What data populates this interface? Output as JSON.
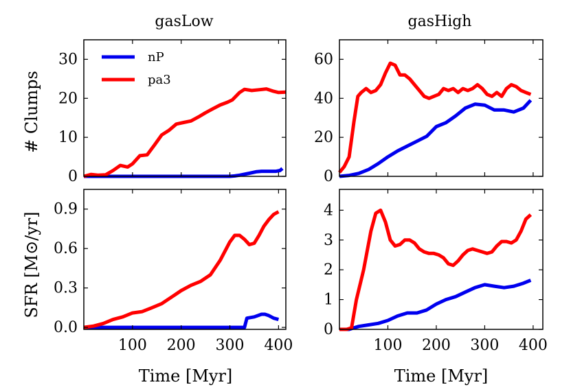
{
  "figure": {
    "xlabel": "Time [Myr]",
    "row_labels": [
      "# Clumps",
      "SFR  [M⊙/yr]"
    ],
    "column_titles": [
      "gasLow",
      "gasHigh"
    ]
  },
  "chart_data": [
    {
      "type": "line",
      "title": "gasLow",
      "ylabel": "# Clumps",
      "xlim": [
        0,
        415
      ],
      "ylim": [
        0,
        35
      ],
      "xticks": [
        100,
        200,
        300,
        400
      ],
      "yticks": [
        0,
        10,
        20,
        30
      ],
      "xtick_labels": [
        "100",
        "200",
        "300",
        "400"
      ],
      "ytick_labels": [
        "0",
        "10",
        "20",
        "30"
      ],
      "show_xtick_labels": false,
      "legend": true,
      "series": [
        {
          "name": "nP",
          "color": "#0000ee",
          "x": [
            0,
            50,
            100,
            150,
            200,
            250,
            300,
            310,
            320,
            340,
            355,
            365,
            380,
            395,
            403,
            408
          ],
          "y": [
            0,
            0,
            0,
            0,
            0,
            0,
            0,
            0.1,
            0.3,
            0.8,
            1.2,
            1.3,
            1.3,
            1.3,
            1.5,
            2.0
          ]
        },
        {
          "name": "pa3",
          "color": "#ff0000",
          "x": [
            0,
            15,
            30,
            45,
            60,
            75,
            90,
            100,
            115,
            130,
            145,
            160,
            175,
            190,
            205,
            220,
            235,
            250,
            265,
            280,
            295,
            305,
            320,
            330,
            345,
            360,
            375,
            390,
            400,
            415
          ],
          "y": [
            0,
            0.5,
            0.3,
            0.4,
            1.5,
            2.8,
            2.4,
            3.2,
            5.3,
            5.5,
            8.0,
            10.6,
            11.8,
            13.4,
            13.8,
            14.2,
            15.2,
            16.3,
            17.3,
            18.3,
            19.0,
            19.6,
            21.5,
            22.3,
            22.0,
            22.2,
            22.4,
            21.8,
            21.5,
            21.6
          ]
        }
      ]
    },
    {
      "type": "line",
      "title": "gasHigh",
      "ylabel": "",
      "xlim": [
        0,
        420
      ],
      "ylim": [
        0,
        70
      ],
      "xticks": [
        100,
        200,
        300,
        400
      ],
      "yticks": [
        0,
        20,
        40,
        60
      ],
      "xtick_labels": [
        "100",
        "200",
        "300",
        "400"
      ],
      "ytick_labels": [
        "0",
        "20",
        "40",
        "60"
      ],
      "show_xtick_labels": false,
      "legend": false,
      "series": [
        {
          "name": "nP",
          "color": "#0000ee",
          "x": [
            0,
            20,
            40,
            60,
            80,
            100,
            120,
            140,
            160,
            180,
            200,
            220,
            240,
            260,
            280,
            300,
            320,
            340,
            360,
            380,
            395
          ],
          "y": [
            0,
            0.5,
            1.5,
            3.5,
            6.5,
            10,
            13,
            15.5,
            18,
            20.5,
            25.5,
            27.5,
            31,
            35,
            37,
            36.5,
            34,
            34,
            33,
            35,
            39
          ]
        },
        {
          "name": "pa3",
          "color": "#ff0000",
          "x": [
            0,
            10,
            20,
            30,
            38,
            45,
            55,
            65,
            75,
            85,
            95,
            105,
            115,
            125,
            135,
            145,
            155,
            165,
            175,
            185,
            195,
            205,
            215,
            225,
            235,
            245,
            255,
            265,
            275,
            285,
            295,
            305,
            315,
            325,
            335,
            345,
            355,
            365,
            375,
            385,
            395
          ],
          "y": [
            2,
            5,
            10,
            28,
            41,
            43,
            45,
            43,
            44,
            47,
            53,
            58,
            57,
            52,
            52,
            50,
            47,
            44,
            41,
            40,
            41,
            42,
            45,
            44,
            45,
            43,
            45,
            44,
            45,
            47,
            45,
            42,
            41,
            43,
            41,
            45,
            47,
            46,
            44,
            43,
            42
          ]
        }
      ]
    },
    {
      "type": "line",
      "title": "",
      "ylabel": "SFR  [M⊙/yr]",
      "xlim": [
        0,
        415
      ],
      "ylim": [
        -0.015,
        1.05
      ],
      "xticks": [
        100,
        200,
        300,
        400
      ],
      "yticks": [
        0,
        0.3,
        0.6,
        0.9
      ],
      "xtick_labels": [
        "100",
        "200",
        "300",
        "400"
      ],
      "ytick_labels": [
        "0.0",
        "0.3",
        "0.6",
        "0.9"
      ],
      "show_xtick_labels": true,
      "legend": false,
      "series": [
        {
          "name": "nP",
          "color": "#0000ee",
          "x": [
            0,
            100,
            200,
            300,
            330,
            335,
            350,
            365,
            372,
            380,
            390,
            400
          ],
          "y": [
            0,
            0,
            0,
            0,
            0,
            0.07,
            0.08,
            0.1,
            0.1,
            0.09,
            0.07,
            0.06
          ]
        },
        {
          "name": "pa3",
          "color": "#ff0000",
          "x": [
            0,
            20,
            40,
            60,
            80,
            100,
            120,
            140,
            160,
            180,
            200,
            220,
            240,
            260,
            280,
            300,
            310,
            320,
            330,
            340,
            350,
            360,
            370,
            380,
            390,
            400
          ],
          "y": [
            0,
            0.01,
            0.03,
            0.06,
            0.08,
            0.11,
            0.12,
            0.15,
            0.18,
            0.23,
            0.28,
            0.32,
            0.35,
            0.4,
            0.51,
            0.65,
            0.7,
            0.7,
            0.67,
            0.63,
            0.64,
            0.7,
            0.77,
            0.82,
            0.86,
            0.88
          ]
        }
      ]
    },
    {
      "type": "line",
      "title": "",
      "ylabel": "",
      "xlim": [
        0,
        420
      ],
      "ylim": [
        0,
        4.7
      ],
      "xticks": [
        100,
        200,
        300,
        400
      ],
      "yticks": [
        0,
        1,
        2,
        3,
        4
      ],
      "xtick_labels": [
        "100",
        "200",
        "300",
        "400"
      ],
      "ytick_labels": [
        "0",
        "1",
        "2",
        "3",
        "4"
      ],
      "show_xtick_labels": true,
      "legend": false,
      "series": [
        {
          "name": "nP",
          "color": "#0000ee",
          "x": [
            0,
            20,
            30,
            40,
            60,
            80,
            100,
            120,
            140,
            160,
            180,
            200,
            220,
            240,
            260,
            280,
            300,
            320,
            340,
            360,
            380,
            395
          ],
          "y": [
            0,
            0,
            0.05,
            0.1,
            0.15,
            0.2,
            0.3,
            0.45,
            0.55,
            0.55,
            0.65,
            0.85,
            1.0,
            1.1,
            1.25,
            1.4,
            1.5,
            1.45,
            1.4,
            1.45,
            1.55,
            1.65
          ]
        },
        {
          "name": "pa3",
          "color": "#ff0000",
          "x": [
            0,
            15,
            25,
            35,
            50,
            65,
            75,
            85,
            95,
            105,
            115,
            125,
            135,
            145,
            155,
            165,
            175,
            185,
            195,
            205,
            215,
            225,
            235,
            245,
            255,
            265,
            275,
            285,
            295,
            305,
            315,
            325,
            335,
            345,
            355,
            365,
            375,
            385,
            395
          ],
          "y": [
            0,
            0,
            0.05,
            1.0,
            2.0,
            3.3,
            3.9,
            4.0,
            3.6,
            3.0,
            2.8,
            2.85,
            3.0,
            3.0,
            2.9,
            2.7,
            2.6,
            2.55,
            2.55,
            2.5,
            2.4,
            2.2,
            2.15,
            2.3,
            2.5,
            2.65,
            2.7,
            2.65,
            2.6,
            2.55,
            2.6,
            2.8,
            2.95,
            2.95,
            2.9,
            3.0,
            3.3,
            3.7,
            3.85
          ]
        }
      ]
    }
  ]
}
